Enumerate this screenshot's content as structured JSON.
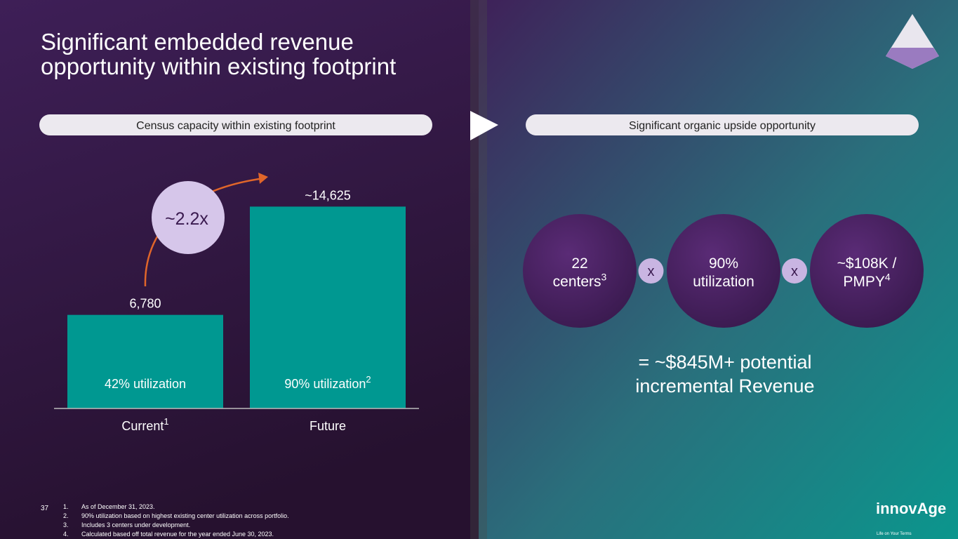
{
  "title_lines": [
    "Significant embedded revenue",
    "opportunity within existing footprint"
  ],
  "left_header": "Census capacity within existing footprint",
  "right_header": "Significant organic upside opportunity",
  "chart_data": {
    "type": "bar",
    "categories": [
      "Current",
      "Future"
    ],
    "category_footnote": "1",
    "values": [
      6780,
      14625
    ],
    "value_labels": [
      "6,780",
      "~14,625"
    ],
    "bar_labels": [
      "42% utilization",
      "90% utilization"
    ],
    "bar_label_footnote": "2",
    "multiplier": "~2.2x",
    "color": "#009891",
    "ylim": [
      0,
      15000
    ]
  },
  "factors": [
    {
      "lines": [
        "22",
        "centers"
      ],
      "footnote": "3"
    },
    {
      "lines": [
        "90%",
        "utilization"
      ]
    },
    {
      "lines": [
        "~$108K /",
        "PMPY"
      ],
      "footnote": "4"
    }
  ],
  "operators": [
    "x",
    "x"
  ],
  "result_lines": [
    "= ~$845M+ potential",
    "incremental Revenue"
  ],
  "page_number": "37",
  "footnotes": [
    {
      "num": "1.",
      "text": "As of December 31, 2023."
    },
    {
      "num": "2.",
      "text": "90% utilization based on highest existing center utilization across portfolio."
    },
    {
      "num": "3.",
      "text": "Includes 3 centers under development."
    },
    {
      "num": "4.",
      "text": "Calculated based off total revenue for the year ended June 30, 2023."
    }
  ],
  "logo": {
    "name": "innovAge",
    "tagline": "Life on Your Terms"
  }
}
